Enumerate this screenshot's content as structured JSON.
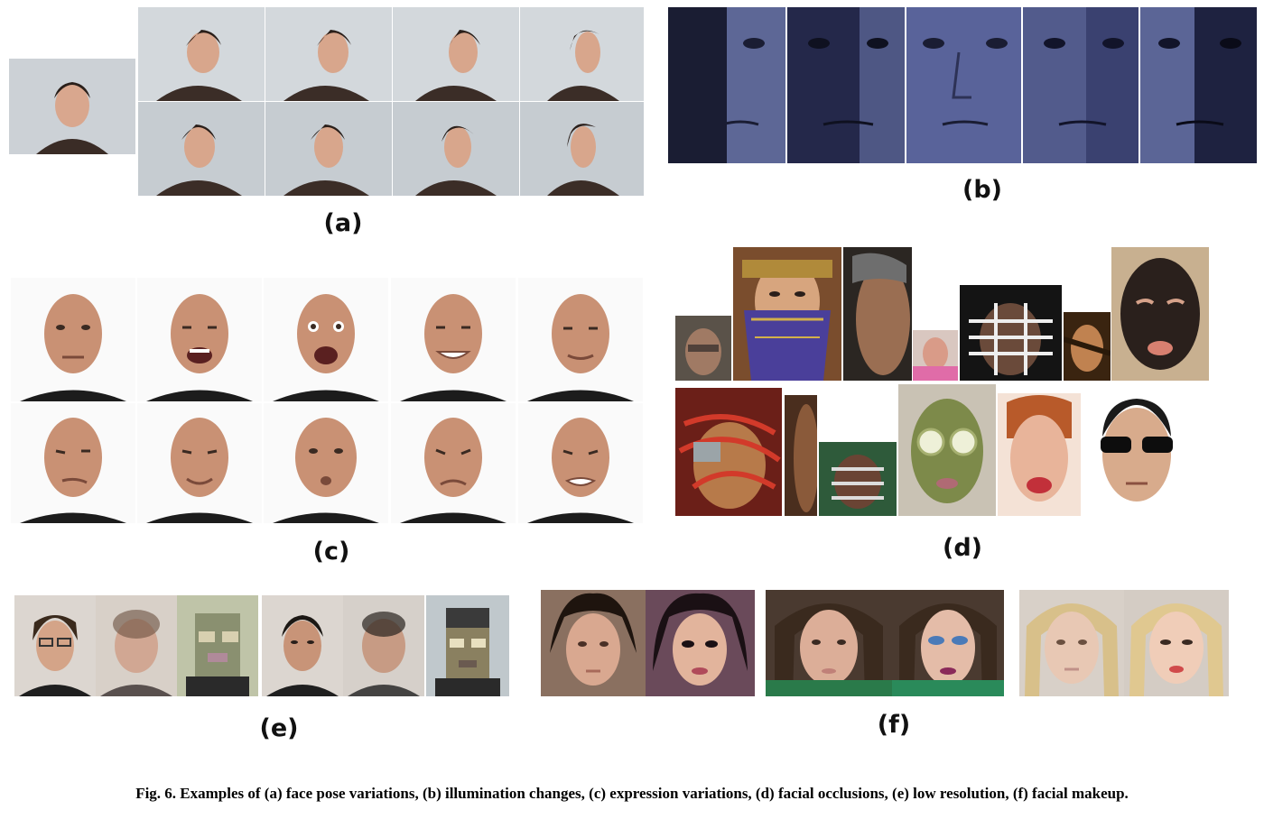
{
  "panels": {
    "a": {
      "label": "(a)"
    },
    "b": {
      "label": "(b)"
    },
    "c": {
      "label": "(c)"
    },
    "d": {
      "label": "(d)"
    },
    "e": {
      "label": "(e)"
    },
    "f": {
      "label": "(f)"
    }
  },
  "caption": "Fig. 6. Examples of (a) face pose variations, (b) illumination changes, (c) expression variations, (d) facial occlusions, (e) low resolution, (f) facial makeup."
}
